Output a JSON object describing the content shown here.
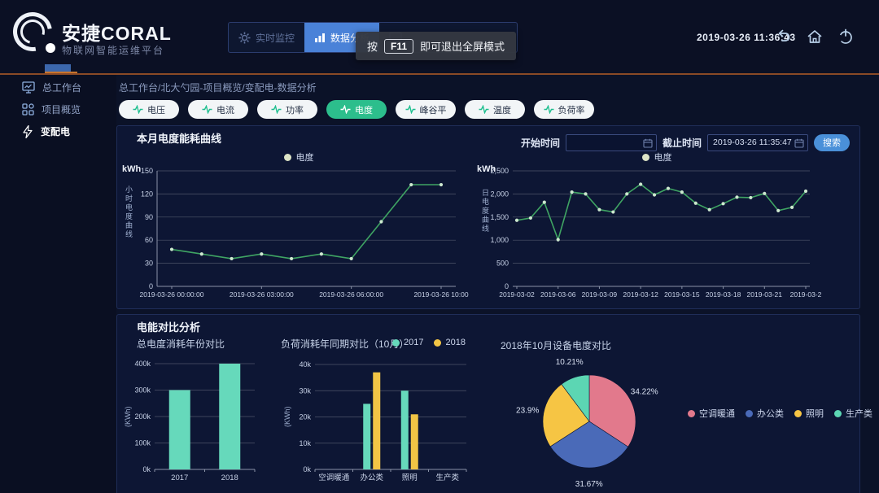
{
  "header": {
    "brand_title": "安捷CORAL",
    "brand_subtitle": "物联网智能运维平台",
    "nav": {
      "monitor_label": "实时监控",
      "analysis_label": "数据分析",
      "accent_color": "#4a82d8"
    },
    "tooltip": {
      "prefix": "按",
      "key": "F11",
      "suffix": "即可退出全屏模式"
    },
    "datetime": "2019-03-26 11:36:43"
  },
  "sidebar": {
    "items": [
      {
        "label": "总工作台"
      },
      {
        "label": "项目概览"
      },
      {
        "label": "变配电",
        "active": true
      }
    ]
  },
  "breadcrumb": "总工作台/北大勺园-项目概览/变配电-数据分析",
  "filters": [
    {
      "label": "电压"
    },
    {
      "label": "电流"
    },
    {
      "label": "功率"
    },
    {
      "label": "电度",
      "active": true
    },
    {
      "label": "峰谷平"
    },
    {
      "label": "温度"
    },
    {
      "label": "负荷率"
    }
  ],
  "controls": {
    "start_label": "开始时间",
    "start_value": "",
    "end_label": "截止时间",
    "end_value": "2019-03-26 11:35:47",
    "search_label": "搜索"
  },
  "compare_title": "电能对比分析",
  "chart_data": [
    {
      "id": "hourly-energy-line",
      "type": "line",
      "title": "本月电度能耗曲线",
      "legend": [
        "电度"
      ],
      "ylabel": "kWh",
      "side_label": "小时电度曲线",
      "ylim": [
        0,
        150
      ],
      "yticks": [
        0,
        30,
        60,
        90,
        120,
        150
      ],
      "xtick_labels": [
        {
          "index": 0,
          "label": "2019-03-26 00:00:00"
        },
        {
          "index": 3,
          "label": "2019-03-26 03:00:00"
        },
        {
          "index": 6,
          "label": "2019-03-26 06:00:00"
        },
        {
          "index": 9,
          "label": "2019-03-26 10:00"
        }
      ],
      "values": [
        48,
        42,
        36,
        42,
        36,
        42,
        36,
        84,
        132,
        132
      ],
      "line_color": "#3fa463"
    },
    {
      "id": "daily-energy-line",
      "type": "line",
      "legend": [
        "电度"
      ],
      "ylabel": "kWh",
      "side_label": "日电度曲线",
      "ylim": [
        0,
        2500
      ],
      "yticks": [
        0,
        500,
        1000,
        1500,
        2000,
        2500
      ],
      "ytick_labels": [
        "0",
        "500",
        "1,000",
        "1,500",
        "2,000",
        "2,500"
      ],
      "xtick_labels": [
        {
          "index": 0,
          "label": "2019-03-02"
        },
        {
          "index": 3,
          "label": "2019-03-06"
        },
        {
          "index": 6,
          "label": "2019-03-09"
        },
        {
          "index": 9,
          "label": "2019-03-12"
        },
        {
          "index": 12,
          "label": "2019-03-15"
        },
        {
          "index": 15,
          "label": "2019-03-18"
        },
        {
          "index": 18,
          "label": "2019-03-21"
        },
        {
          "index": 21,
          "label": "2019-03-2"
        }
      ],
      "values": [
        1430,
        1480,
        1820,
        1010,
        2040,
        2000,
        1660,
        1610,
        2000,
        2210,
        1980,
        2120,
        2040,
        1800,
        1660,
        1790,
        1930,
        1920,
        2010,
        1640,
        1710,
        2060
      ],
      "line_color": "#3fa463"
    },
    {
      "id": "year-compare-bar",
      "type": "bar",
      "title": "总电度消耗年份对比",
      "ylabel": "(KWh)",
      "categories": [
        "2017",
        "2018"
      ],
      "values": [
        300000,
        400000
      ],
      "ylim": [
        0,
        400000
      ],
      "yticks": [
        0,
        100000,
        200000,
        300000,
        400000
      ],
      "ytick_labels": [
        "0k",
        "100k",
        "200k",
        "300k",
        "400k"
      ],
      "bar_color": "#66d9bb"
    },
    {
      "id": "load-compare-bar",
      "type": "bar",
      "title": "负荷消耗年同期对比（10月）",
      "ylabel": "(KWh)",
      "categories": [
        "空调暖通",
        "办公类",
        "照明",
        "生产类"
      ],
      "series": [
        {
          "name": "2017",
          "color": "#66d9bb",
          "values": [
            0,
            25000,
            30000,
            0
          ]
        },
        {
          "name": "2018",
          "color": "#f2c545",
          "values": [
            0,
            37000,
            21000,
            0
          ]
        }
      ],
      "ylim": [
        0,
        40000
      ],
      "yticks": [
        0,
        10000,
        20000,
        30000,
        40000
      ],
      "ytick_labels": [
        "0k",
        "10k",
        "20k",
        "30k",
        "40k"
      ]
    },
    {
      "id": "device-energy-pie",
      "type": "pie",
      "title": "2018年10月设备电度对比",
      "slices": [
        {
          "name": "空调暖通",
          "value": 34.22,
          "color": "#e2798c"
        },
        {
          "name": "办公类",
          "value": 31.67,
          "color": "#4a6ab8"
        },
        {
          "name": "照明",
          "value": 23.9,
          "color": "#f6c544"
        },
        {
          "name": "生产类",
          "value": 10.21,
          "color": "#5cd6b3"
        }
      ],
      "label_suffix": "%"
    }
  ]
}
